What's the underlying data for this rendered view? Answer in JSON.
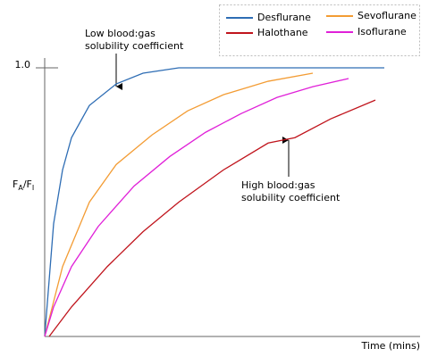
{
  "chart_data": {
    "type": "line",
    "ylabel": [
      "F",
      "A",
      "/F",
      "I"
    ],
    "xlabel": "Time (mins)",
    "ylim": [
      0,
      1
    ],
    "yticks": [
      {
        "value": 1,
        "label": "1.0"
      }
    ],
    "xlim": [
      0,
      42
    ],
    "series": [
      {
        "name": "Desflurane",
        "color": "#2e6db4",
        "x": [
          0,
          1,
          2,
          3,
          5,
          8,
          11,
          15,
          38
        ],
        "values": [
          0,
          0.42,
          0.62,
          0.74,
          0.86,
          0.94,
          0.98,
          1.0,
          1.0
        ]
      },
      {
        "name": "Sevoflurane",
        "color": "#f39c34",
        "x": [
          0,
          2,
          5,
          8,
          12,
          16,
          20,
          25,
          30
        ],
        "values": [
          0,
          0.26,
          0.5,
          0.64,
          0.75,
          0.84,
          0.9,
          0.95,
          0.98
        ]
      },
      {
        "name": "Halothane",
        "color": "#c0141c",
        "x": [
          0.5,
          3,
          7,
          11,
          15,
          20,
          25,
          28,
          32,
          37
        ],
        "values": [
          0,
          0.11,
          0.26,
          0.39,
          0.5,
          0.62,
          0.72,
          0.74,
          0.81,
          0.88
        ]
      },
      {
        "name": "Isoflurane",
        "color": "#e020d8",
        "x": [
          0,
          1,
          3,
          6,
          10,
          14,
          18,
          22,
          26,
          30,
          34
        ],
        "values": [
          0,
          0.11,
          0.26,
          0.41,
          0.56,
          0.67,
          0.76,
          0.83,
          0.89,
          0.93,
          0.96
        ]
      }
    ],
    "annotations": [
      {
        "lines": [
          "Low blood:gas",
          "solubility coefficient"
        ]
      },
      {
        "lines": [
          "High blood:gas",
          "solubility coefficient"
        ]
      }
    ]
  }
}
